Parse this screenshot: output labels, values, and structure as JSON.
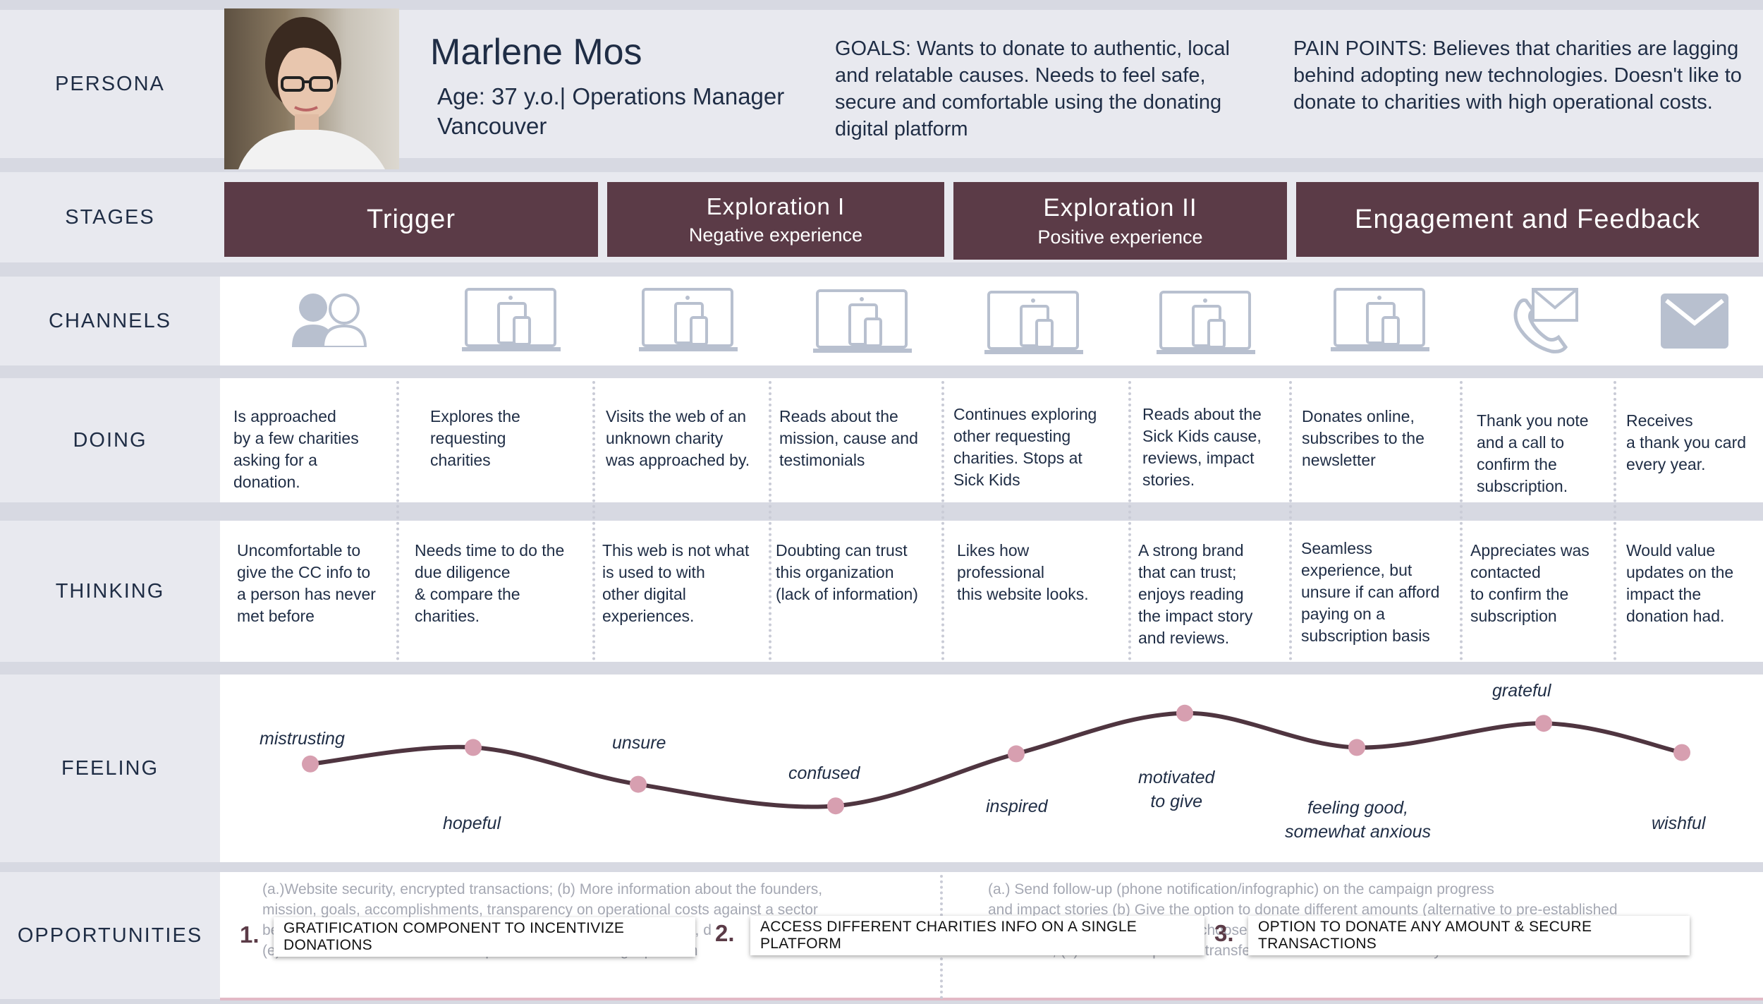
{
  "rows": {
    "persona": "PERSONA",
    "stages": "STAGES",
    "channels": "CHANNELS",
    "doing": "DOING",
    "thinking": "THINKING",
    "feeling": "FEELING",
    "opportunities": "OPPORTUNITIES"
  },
  "persona": {
    "name": "Marlene Mos",
    "age_role": "Age: 37 y.o.| Operations Manager",
    "city": "Vancouver",
    "goals": "GOALS: Wants to donate to authentic, local and relatable causes. Needs to feel safe, secure and comfortable using the donating digital platform",
    "pain_points": "PAIN POINTS: Believes that charities are lagging behind adopting new technologies. Doesn't like to donate to charities with high operational costs."
  },
  "stages": [
    {
      "title": "Trigger",
      "subtitle": ""
    },
    {
      "title": "Exploration I",
      "subtitle": "Negative experience"
    },
    {
      "title": "Exploration II",
      "subtitle": "Positive experience"
    },
    {
      "title": "Engagement and Feedback",
      "subtitle": ""
    }
  ],
  "channels": [
    "people-icon",
    "devices-icon",
    "devices-icon",
    "devices-icon",
    "devices-icon",
    "devices-icon",
    "devices-icon",
    "phone-mail-icon",
    "mail-icon"
  ],
  "doing": [
    "Is approached\nby a few charities\nasking for a\ndonation.",
    "Explores the\nrequesting\ncharities",
    "Visits the web of an\nunknown charity\nwas approached by.",
    "Reads about the\nmission, cause and\ntestimonials",
    "Continues exploring\nother requesting\ncharities. Stops at\nSick Kids",
    "Reads about the\nSick Kids cause,\nreviews, impact\nstories.",
    "Donates online,\nsubscribes to the\nnewsletter",
    "Thank you note\nand a call to\nconfirm the\nsubscription.",
    "Receives\na thank you card\nevery year."
  ],
  "thinking": [
    "Uncomfortable to\ngive  the CC info to\na person has never\nmet before",
    "Needs time to do the\ndue diligence\n& compare the\ncharities.",
    "This web is not what\n is used to with\nother digital\nexperiences.",
    "Doubting can trust\nthis organization\n(lack of information)",
    "Likes how\nprofessional\nthis website looks.",
    "A strong brand\nthat can trust;\nenjoys reading\nthe impact story\nand  reviews.",
    "Seamless\nexperience, but\nunsure if can afford\npaying on a\nsubscription basis",
    "Appreciates was\ncontacted\n to confirm the\nsubscription",
    "Would value\nupdates on the\nimpact the\ndonation had."
  ],
  "feelings": [
    {
      "label": "mistrusting",
      "level": 0.54
    },
    {
      "label": "hopeful",
      "level": 0.67
    },
    {
      "label": "unsure",
      "level": 0.38
    },
    {
      "label": "confused",
      "level": 0.21
    },
    {
      "label": "inspired",
      "level": 0.62
    },
    {
      "label": "motivated\nto give",
      "level": 0.94
    },
    {
      "label": "feeling good,\nsomewhat anxious",
      "level": 0.67
    },
    {
      "label": "grateful",
      "level": 0.86
    },
    {
      "label": "wishful",
      "level": 0.63
    }
  ],
  "opportunities": {
    "note_left": "(a.)Website security, encrypted transactions; (b) More information about the founders,\nmission, goals, accomplishments, transparency on operational costs against a sector\nbenchmark; (c) Offer incentives and rewards; (d) Provide a receipt, d\n(e) Access information about multiple charities on a single platform",
    "note_right": "(a.) Send follow-up (phone notification/infographic) on the campaign progress\nand impact stories (b) Give the option to donate different amounts (alternative to pre-established\namounts); (c) Give the option to choose your monthly\ndonations, (e) Offer the option to transfer the rewards to a beneficiary of choice",
    "items": [
      {
        "num": "1.",
        "label": "GRATIFICATION COMPONENT TO INCENTIVIZE DONATIONS"
      },
      {
        "num": "2.",
        "label": "ACCESS DIFFERENT CHARITIES INFO ON A SINGLE PLATFORM"
      },
      {
        "num": "3.",
        "label": "OPTION TO DONATE ANY AMOUNT & SECURE TRANSACTIONS"
      }
    ]
  },
  "colors": {
    "stage": "#5b3b47",
    "curve": "#4f3540",
    "dot": "#d79fb0",
    "icon": "#b8c0cf"
  }
}
